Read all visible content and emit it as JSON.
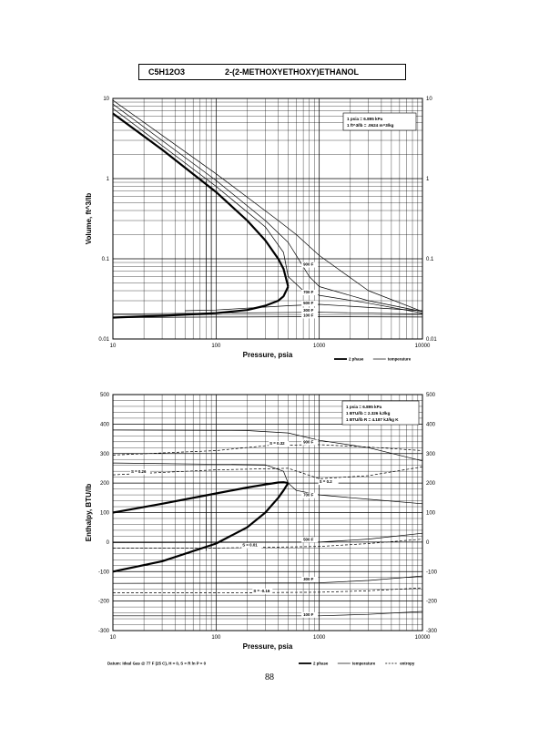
{
  "header": {
    "formula": "C5H12O3",
    "name": "2-(2-METHOXYETHOXY)ETHANOL"
  },
  "page_number": "88",
  "chart_data": [
    {
      "type": "line",
      "xlabel": "Pressure,  psia",
      "ylabel": "Volume, ft^3/lb",
      "x_scale": "log",
      "y_scale": "log",
      "xlim": [
        10,
        10000
      ],
      "ylim": [
        0.01,
        10
      ],
      "x_ticks": [
        "10",
        "100",
        "1000",
        "10000"
      ],
      "y_ticks_left": [
        "10",
        "1",
        "0.1",
        "0.01"
      ],
      "y_ticks_right": [
        "10",
        "1",
        "0.1",
        "0.01"
      ],
      "grid": true,
      "notes": [
        "1 psia = 6.895 kPa",
        "1 ft^3/lb = .0624 m^3/kg"
      ],
      "legend": [
        {
          "label": "2 phase",
          "style": "thick"
        },
        {
          "label": "temperature",
          "style": "thin"
        }
      ],
      "isotherm_labels": [
        {
          "text": "900 F",
          "x": 700,
          "y": 0.082
        },
        {
          "text": "700 F",
          "x": 700,
          "y": 0.037
        },
        {
          "text": "500 F",
          "x": 700,
          "y": 0.027
        },
        {
          "text": "300 F",
          "x": 700,
          "y": 0.022
        },
        {
          "text": "100 F",
          "x": 700,
          "y": 0.019
        }
      ],
      "series": [
        {
          "role": "two-phase-vapor",
          "style": "thick",
          "x": [
            10,
            30,
            100,
            200,
            300,
            400,
            450,
            500
          ],
          "y": [
            6.5,
            2.3,
            0.68,
            0.3,
            0.17,
            0.1,
            0.075,
            0.045
          ]
        },
        {
          "role": "two-phase-liquid",
          "style": "thick",
          "x": [
            10,
            30,
            100,
            200,
            300,
            400,
            450,
            500
          ],
          "y": [
            0.0185,
            0.0195,
            0.021,
            0.023,
            0.026,
            0.03,
            0.034,
            0.045
          ]
        },
        {
          "role": "isotherm",
          "style": "thin",
          "x": [
            10,
            100,
            400,
            600,
            1000,
            3000,
            10000
          ],
          "y": [
            9.5,
            1.15,
            0.3,
            0.2,
            0.11,
            0.04,
            0.022
          ]
        },
        {
          "role": "isotherm",
          "style": "thin",
          "x": [
            10,
            100,
            300,
            500,
            600,
            800,
            1000,
            3000,
            10000
          ],
          "y": [
            8.5,
            0.95,
            0.3,
            0.16,
            0.11,
            0.06,
            0.045,
            0.03,
            0.022
          ]
        },
        {
          "role": "isotherm",
          "style": "thin",
          "x": [
            10,
            100,
            300,
            450,
            500,
            700,
            1000,
            3000,
            10000
          ],
          "y": [
            7.5,
            0.8,
            0.25,
            0.12,
            0.06,
            0.04,
            0.035,
            0.028,
            0.021
          ]
        },
        {
          "role": "isotherm",
          "style": "thin",
          "x": [
            50,
            100,
            500,
            1000,
            10000
          ],
          "y": [
            0.0225,
            0.023,
            0.026,
            0.027,
            0.0225
          ]
        },
        {
          "role": "isotherm",
          "style": "thin",
          "x": [
            10,
            100,
            1000,
            10000
          ],
          "y": [
            0.0205,
            0.021,
            0.0215,
            0.0205
          ]
        },
        {
          "role": "isotherm",
          "style": "thin",
          "x": [
            10,
            100,
            1000,
            10000
          ],
          "y": [
            0.0185,
            0.0188,
            0.019,
            0.0188
          ]
        },
        {
          "role": "isobar",
          "style": "thin",
          "x": [
            80,
            80
          ],
          "y": [
            0.02,
            0.95
          ]
        },
        {
          "role": "isobar",
          "style": "thin",
          "x": [
            90,
            90
          ],
          "y": [
            0.02,
            0.8
          ]
        }
      ]
    },
    {
      "type": "line",
      "xlabel": "Pressure,  psia",
      "ylabel": "Enthalpy, BTU/lb",
      "x_scale": "log",
      "xlim": [
        10,
        10000
      ],
      "ylim": [
        -300,
        500
      ],
      "x_ticks": [
        "10",
        "100",
        "1000",
        "10000"
      ],
      "y_ticks_left": [
        "500",
        "400",
        "300",
        "200",
        "100",
        "0",
        "-100",
        "-200",
        "-300"
      ],
      "y_ticks_right": [
        "500",
        "400",
        "300",
        "200",
        "100",
        "0",
        "-100",
        "-200",
        "-300"
      ],
      "grid": true,
      "notes": [
        "1 psia = 6.895 kPa",
        "1 BTU/lb = 2.326 kJ/kg",
        "1 BTU/lb R = 4.187 kJ/kg K"
      ],
      "datum": "Datum: Ideal Gas @ 77 F (25 C), H = 0, S = R ln P = 0",
      "legend": [
        {
          "label": "2 phase",
          "style": "thick"
        },
        {
          "label": "temperature",
          "style": "thin"
        },
        {
          "label": "entropy",
          "style": "dashed"
        }
      ],
      "isotherm_labels": [
        {
          "text": "900 F",
          "x": 700,
          "y": 335
        },
        {
          "text": "700 F",
          "x": 700,
          "y": 155
        },
        {
          "text": "500 F",
          "x": 700,
          "y": 5
        },
        {
          "text": "300 F",
          "x": 700,
          "y": -130
        },
        {
          "text": "100 F",
          "x": 700,
          "y": -250
        }
      ],
      "entropy_labels": [
        {
          "text": "S = 0.32",
          "x": 330,
          "y": 330
        },
        {
          "text": "S = 0.26",
          "x": 15,
          "y": 235
        },
        {
          "text": "S = 0.2",
          "x": 1000,
          "y": 200
        },
        {
          "text": "S = 0.01",
          "x": 180,
          "y": -15
        },
        {
          "text": "S = -0.16",
          "x": 230,
          "y": -170
        }
      ],
      "series": [
        {
          "role": "two-phase-vapor",
          "style": "thick",
          "x": [
            10,
            30,
            100,
            200,
            300,
            400,
            450,
            500
          ],
          "y": [
            100,
            130,
            165,
            185,
            195,
            202,
            203,
            200
          ]
        },
        {
          "role": "two-phase-liquid",
          "style": "thick",
          "x": [
            10,
            30,
            100,
            200,
            300,
            400,
            450,
            500
          ],
          "y": [
            -100,
            -65,
            -5,
            50,
            100,
            150,
            175,
            200
          ]
        },
        {
          "role": "isotherm",
          "style": "thin",
          "x": [
            10,
            200,
            500,
            1000,
            3000,
            10000
          ],
          "y": [
            380,
            378,
            370,
            345,
            320,
            275
          ]
        },
        {
          "role": "isotherm",
          "style": "thin",
          "x": [
            10,
            300,
            450,
            500,
            600,
            1000,
            3000,
            10000
          ],
          "y": [
            268,
            262,
            240,
            200,
            175,
            160,
            145,
            130
          ]
        },
        {
          "role": "isotherm",
          "style": "thin",
          "x": [
            10,
            1000,
            3000,
            10000
          ],
          "y": [
            -2,
            0,
            10,
            30
          ]
        },
        {
          "role": "isotherm",
          "style": "thin",
          "x": [
            10,
            1000,
            3000,
            10000
          ],
          "y": [
            -140,
            -138,
            -130,
            -115
          ]
        },
        {
          "role": "isotherm",
          "style": "thin",
          "x": [
            10,
            1000,
            3000,
            10000
          ],
          "y": [
            -250,
            -250,
            -245,
            -235
          ]
        },
        {
          "role": "entropy",
          "style": "dashed",
          "x": [
            10,
            100,
            330,
            1000,
            3000,
            10000
          ],
          "y": [
            295,
            310,
            328,
            330,
            322,
            310
          ]
        },
        {
          "role": "entropy",
          "style": "dashed",
          "x": [
            10,
            100,
            500,
            1000,
            3000,
            10000
          ],
          "y": [
            228,
            245,
            250,
            215,
            225,
            255
          ]
        },
        {
          "role": "entropy",
          "style": "dashed",
          "x": [
            10,
            100,
            1000,
            3000,
            10000
          ],
          "y": [
            -20,
            -20,
            -15,
            -5,
            10
          ]
        },
        {
          "role": "entropy",
          "style": "dashed",
          "x": [
            10,
            100,
            1000,
            3000,
            10000
          ],
          "y": [
            -172,
            -172,
            -170,
            -165,
            -155
          ]
        },
        {
          "role": "isobar",
          "style": "thin",
          "x": [
            80,
            80
          ],
          "y": [
            -30,
            160
          ]
        },
        {
          "role": "isobar",
          "style": "thin",
          "x": [
            90,
            90
          ],
          "y": [
            -20,
            165
          ]
        }
      ]
    }
  ]
}
